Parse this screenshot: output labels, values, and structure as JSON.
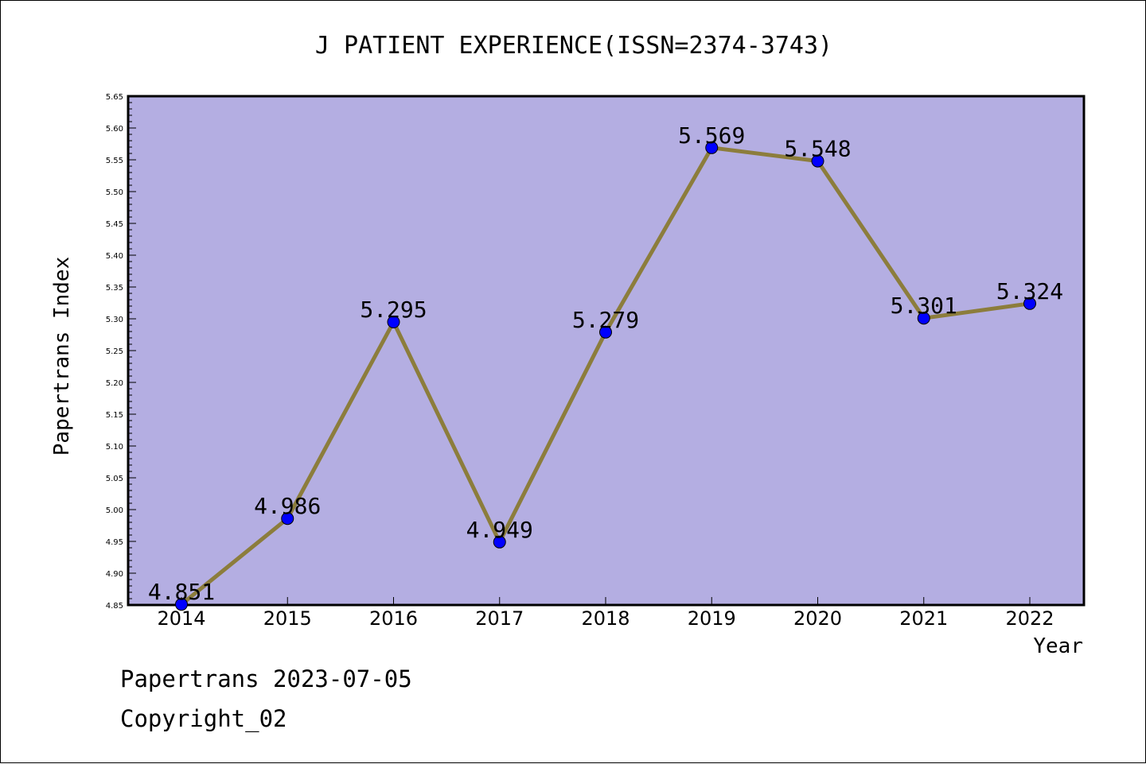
{
  "chart_data": {
    "type": "line",
    "title": "J PATIENT EXPERIENCE(ISSN=2374-3743)",
    "xlabel": "Year",
    "ylabel": "Papertrans Index",
    "categories": [
      "2014",
      "2015",
      "2016",
      "2017",
      "2018",
      "2019",
      "2020",
      "2021",
      "2022"
    ],
    "values": [
      4.851,
      4.986,
      5.295,
      4.949,
      5.279,
      5.569,
      5.548,
      5.301,
      5.324
    ],
    "data_labels": [
      "4.851",
      "4.986",
      "5.295",
      "4.949",
      "5.279",
      "5.569",
      "5.548",
      "5.301",
      "5.324"
    ],
    "ylim": [
      4.85,
      5.65
    ],
    "yticks": [
      "4.85",
      "4.90",
      "4.95",
      "5.00",
      "5.05",
      "5.10",
      "5.15",
      "5.20",
      "5.25",
      "5.30",
      "5.35",
      "5.40",
      "5.45",
      "5.50",
      "5.55",
      "5.60",
      "5.65"
    ],
    "grid": false,
    "colors": {
      "plot_background": "#b4aee2",
      "line": "#8c7d3c",
      "marker": "#0000ff"
    }
  },
  "footer": {
    "line1": "Papertrans 2023-07-05",
    "line2": "Copyright_02"
  }
}
